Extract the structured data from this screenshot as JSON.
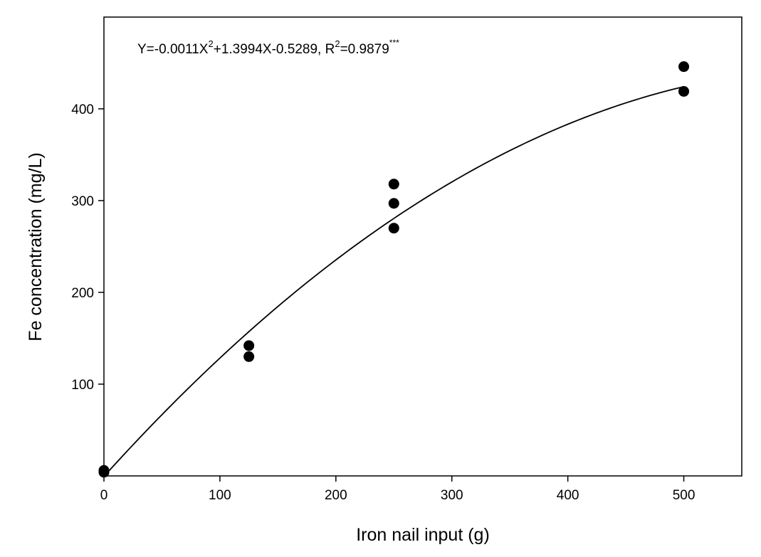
{
  "chart_data": {
    "type": "scatter",
    "xlabel": "Iron nail input (g)",
    "ylabel": "Fe concentration (mg/L)",
    "xlim": [
      0,
      550
    ],
    "ylim": [
      0,
      500
    ],
    "x_ticks": [
      0,
      100,
      200,
      300,
      400,
      500
    ],
    "y_ticks": [
      100,
      200,
      300,
      400
    ],
    "grid": false,
    "points": [
      {
        "x": 0,
        "y": 4
      },
      {
        "x": 0,
        "y": 6
      },
      {
        "x": 125,
        "y": 142
      },
      {
        "x": 125,
        "y": 130
      },
      {
        "x": 250,
        "y": 318
      },
      {
        "x": 250,
        "y": 297
      },
      {
        "x": 250,
        "y": 270
      },
      {
        "x": 500,
        "y": 446
      },
      {
        "x": 500,
        "y": 419
      }
    ],
    "fit": {
      "type": "quadratic",
      "a": -0.0011,
      "b": 1.3994,
      "c": -0.5289,
      "x_range": [
        0,
        500
      ]
    },
    "annotation": {
      "prefix": "Y=-0.0011X",
      "exp1": "2",
      "middle": "+1.3994X-0.5289, R",
      "exp2": "2",
      "suffix": "=0.9879",
      "significance": "***"
    }
  }
}
